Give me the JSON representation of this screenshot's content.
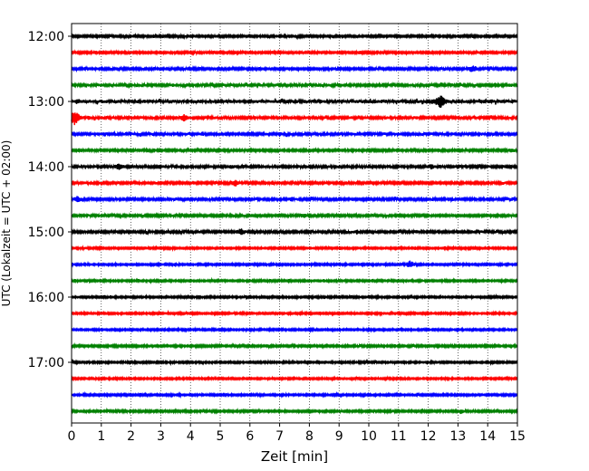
{
  "chart_data": {
    "type": "line",
    "xlabel": "Zeit  [min]",
    "ylabel": "UTC (Lokalzeit = UTC + 02:00)",
    "xlim": [
      0,
      15
    ],
    "x_ticks": [
      "0",
      "1",
      "2",
      "3",
      "4",
      "5",
      "6",
      "7",
      "8",
      "9",
      "10",
      "11",
      "12",
      "13",
      "14",
      "15"
    ],
    "y_tick_labels": [
      "12:00",
      "13:00",
      "14:00",
      "15:00",
      "16:00",
      "17:00"
    ],
    "trace_interval_min": 15,
    "trace_colors": [
      "#000000",
      "#ff0000",
      "#0000ff",
      "#008000"
    ],
    "grid_x": "dotted",
    "traces": [
      {
        "start": "12:00",
        "color": "#000000",
        "amplitude": 1.0,
        "events": []
      },
      {
        "start": "12:15",
        "color": "#ff0000",
        "amplitude": 1.0,
        "events": [
          {
            "t": 9.7,
            "amp": 2.5
          }
        ]
      },
      {
        "start": "12:30",
        "color": "#0000ff",
        "amplitude": 1.1,
        "events": [
          {
            "t": 13.5,
            "amp": 5
          },
          {
            "t": 3.8,
            "amp": 1.6
          }
        ]
      },
      {
        "start": "12:45",
        "color": "#008000",
        "amplitude": 1.3,
        "events": [
          {
            "t": 1.0,
            "amp": 2
          },
          {
            "t": 3.4,
            "amp": 2
          },
          {
            "t": 14.8,
            "amp": 2
          }
        ]
      },
      {
        "start": "13:00",
        "color": "#000000",
        "amplitude": 1.6,
        "events": [
          {
            "t": 0.2,
            "amp": 3.5
          },
          {
            "t": 12.4,
            "amp": 9
          }
        ]
      },
      {
        "start": "13:15",
        "color": "#ff0000",
        "amplitude": 1.3,
        "events": [
          {
            "t": 0.1,
            "amp": 9
          },
          {
            "t": 0.6,
            "amp": 3
          },
          {
            "t": 3.8,
            "amp": 5
          }
        ]
      },
      {
        "start": "13:30",
        "color": "#0000ff",
        "amplitude": 1.3,
        "events": [
          {
            "t": 4.4,
            "amp": 3
          },
          {
            "t": 7.0,
            "amp": 3
          },
          {
            "t": 14.2,
            "amp": 2
          }
        ]
      },
      {
        "start": "13:45",
        "color": "#008000",
        "amplitude": 1.1,
        "events": [
          {
            "t": 14.8,
            "amp": 3
          }
        ]
      },
      {
        "start": "14:00",
        "color": "#000000",
        "amplitude": 1.3,
        "events": [
          {
            "t": 1.6,
            "amp": 4.5
          },
          {
            "t": 5.4,
            "amp": 3
          },
          {
            "t": 12.1,
            "amp": 3.5
          }
        ]
      },
      {
        "start": "14:15",
        "color": "#ff0000",
        "amplitude": 1.2,
        "events": [
          {
            "t": 4.1,
            "amp": 2.5
          },
          {
            "t": 5.5,
            "amp": 4.5
          },
          {
            "t": 14.5,
            "amp": 2
          }
        ]
      },
      {
        "start": "14:30",
        "color": "#0000ff",
        "amplitude": 1.2,
        "events": [
          {
            "t": 0.2,
            "amp": 4
          },
          {
            "t": 7.4,
            "amp": 3
          }
        ]
      },
      {
        "start": "14:45",
        "color": "#008000",
        "amplitude": 1.1,
        "events": [
          {
            "t": 7.8,
            "amp": 3.5
          }
        ]
      },
      {
        "start": "15:00",
        "color": "#000000",
        "amplitude": 1.2,
        "events": [
          {
            "t": 5.7,
            "amp": 4.5
          },
          {
            "t": 9.6,
            "amp": 3
          },
          {
            "t": 11.6,
            "amp": 2.5
          }
        ]
      },
      {
        "start": "15:15",
        "color": "#ff0000",
        "amplitude": 0.9,
        "events": [
          {
            "t": 0.5,
            "amp": 2
          }
        ]
      },
      {
        "start": "15:30",
        "color": "#0000ff",
        "amplitude": 0.9,
        "events": [
          {
            "t": 3.5,
            "amp": 2.5
          },
          {
            "t": 11.4,
            "amp": 5
          }
        ]
      },
      {
        "start": "15:45",
        "color": "#008000",
        "amplitude": 0.9,
        "events": []
      },
      {
        "start": "16:00",
        "color": "#000000",
        "amplitude": 0.9,
        "events": []
      },
      {
        "start": "16:15",
        "color": "#ff0000",
        "amplitude": 0.9,
        "events": [
          {
            "t": 5.4,
            "amp": 2
          }
        ]
      },
      {
        "start": "16:30",
        "color": "#0000ff",
        "amplitude": 0.9,
        "events": [
          {
            "t": 8.2,
            "amp": 2
          }
        ]
      },
      {
        "start": "16:45",
        "color": "#008000",
        "amplitude": 1.0,
        "events": [
          {
            "t": 1.5,
            "amp": 1.8
          }
        ]
      },
      {
        "start": "17:00",
        "color": "#000000",
        "amplitude": 0.9,
        "events": []
      },
      {
        "start": "17:15",
        "color": "#ff0000",
        "amplitude": 0.9,
        "events": []
      },
      {
        "start": "17:30",
        "color": "#0000ff",
        "amplitude": 0.9,
        "events": []
      },
      {
        "start": "17:45",
        "color": "#008000",
        "amplitude": 1.0,
        "events": [
          {
            "t": 13.1,
            "amp": 3
          },
          {
            "t": 10.8,
            "amp": 2
          }
        ]
      }
    ]
  }
}
